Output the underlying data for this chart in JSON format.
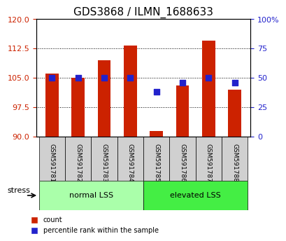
{
  "title": "GDS3868 / ILMN_1688633",
  "samples": [
    "GSM591781",
    "GSM591782",
    "GSM591783",
    "GSM591784",
    "GSM591785",
    "GSM591786",
    "GSM591787",
    "GSM591788"
  ],
  "counts": [
    106.2,
    105.0,
    109.5,
    113.2,
    91.5,
    103.0,
    114.5,
    102.0
  ],
  "percentiles": [
    50,
    50,
    50,
    50,
    38,
    46,
    50,
    46
  ],
  "bar_color": "#cc2200",
  "dot_color": "#2222cc",
  "ymin": 90,
  "ymax": 120,
  "yticks": [
    90,
    97.5,
    105,
    112.5,
    120
  ],
  "y2min": 0,
  "y2max": 100,
  "y2ticks": [
    0,
    25,
    50,
    75,
    100
  ],
  "groups": [
    {
      "label": "normal LSS",
      "start": 0,
      "end": 4,
      "color": "#aaffaa"
    },
    {
      "label": "elevated LSS",
      "start": 4,
      "end": 8,
      "color": "#44ee44"
    }
  ],
  "stress_label": "stress",
  "xlabel_color": "#000000",
  "left_axis_color": "#cc2200",
  "right_axis_color": "#2222cc",
  "bg_color": "#ffffff",
  "bar_width": 0.5,
  "legend_items": [
    {
      "label": "count",
      "color": "#cc2200"
    },
    {
      "label": "percentile rank within the sample",
      "color": "#2222cc"
    }
  ]
}
